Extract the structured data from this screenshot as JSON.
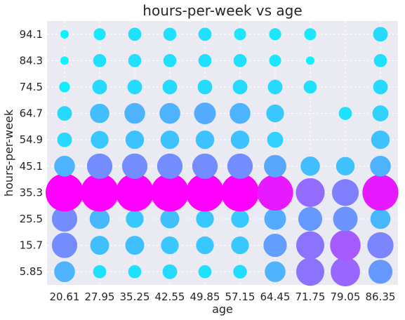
{
  "chart_data": {
    "type": "scatter",
    "title": "hours-per-week vs age",
    "xlabel": "age",
    "ylabel": "hours-per-week",
    "x_categories": [
      "20.61",
      "27.95",
      "35.25",
      "42.55",
      "49.85",
      "57.15",
      "64.45",
      "71.75",
      "79.05",
      "86.35"
    ],
    "y_categories": [
      "5.85",
      "15.7",
      "25.5",
      "35.3",
      "45.1",
      "54.9",
      "64.7",
      "74.5",
      "84.3",
      "94.1"
    ],
    "grid": true,
    "colormap": "cool",
    "colors": {
      "plot_background": "#eaeaf2",
      "grid": "#ffffff",
      "low": "#00ffff",
      "high": "#ff00ff"
    },
    "matrix": [
      [
        0.3,
        0.12,
        0.12,
        0.15,
        0.12,
        0.13,
        0.3,
        0.55,
        0.6,
        0.4
      ],
      [
        0.45,
        0.25,
        0.25,
        0.22,
        0.22,
        0.22,
        0.38,
        0.55,
        0.65,
        0.48
      ],
      [
        0.45,
        0.28,
        0.22,
        0.25,
        0.22,
        0.22,
        0.33,
        0.4,
        0.42,
        0.28
      ],
      [
        1.0,
        1.0,
        1.0,
        1.0,
        1.0,
        1.0,
        0.9,
        0.58,
        0.5,
        0.9
      ],
      [
        0.3,
        0.45,
        0.45,
        0.45,
        0.45,
        0.45,
        0.35,
        0.26,
        0.24,
        0.3
      ],
      [
        0.15,
        0.22,
        0.24,
        0.24,
        0.24,
        0.24,
        0.18,
        0.0,
        0.0,
        0.24
      ],
      [
        0.15,
        0.26,
        0.3,
        0.3,
        0.33,
        0.3,
        0.22,
        0.0,
        0.12,
        0.18
      ],
      [
        0.08,
        0.15,
        0.15,
        0.15,
        0.15,
        0.15,
        0.15,
        0.12,
        0.0,
        0.15
      ],
      [
        0.05,
        0.12,
        0.12,
        0.12,
        0.12,
        0.12,
        0.1,
        0.05,
        0.0,
        0.12
      ],
      [
        0.05,
        0.1,
        0.12,
        0.12,
        0.12,
        0.1,
        0.1,
        0.1,
        0.0,
        0.15
      ]
    ]
  }
}
